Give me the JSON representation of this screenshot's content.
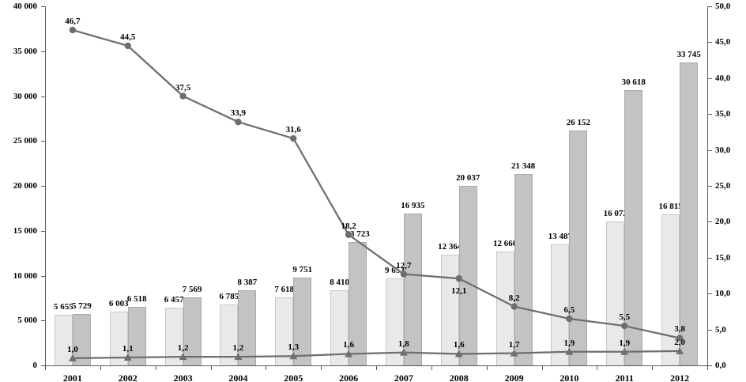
{
  "chart_data": {
    "type": "bar",
    "subtype": "combo-bar-line",
    "title": "",
    "xlabel": "",
    "ylabel": "",
    "grid": false,
    "legend_position": "none",
    "categories": [
      "2001",
      "2002",
      "2003",
      "2004",
      "2005",
      "2006",
      "2007",
      "2008",
      "2009",
      "2010",
      "2011",
      "2012"
    ],
    "series": [
      {
        "id": "bars_light",
        "type": "bar",
        "axis": "left",
        "color": "#e9e9e9",
        "border_color": "#c8c8c8",
        "values": [
          5655,
          6003,
          6457,
          6785,
          7618,
          8410,
          9653,
          12364,
          12660,
          13487,
          16072,
          16815
        ],
        "labels": [
          "5 655",
          "6 003",
          "6 457",
          "6 785",
          "7 618",
          "8 410",
          "9 653",
          "12 364",
          "12 660",
          "13 487",
          "16 072",
          "16 815"
        ]
      },
      {
        "id": "bars_dark",
        "type": "bar",
        "axis": "left",
        "color": "#c3c3c3",
        "border_color": "#a9a9a9",
        "values": [
          5729,
          6518,
          7569,
          8387,
          9751,
          13723,
          16935,
          20037,
          21348,
          26152,
          30618,
          33745
        ],
        "labels": [
          "5 729",
          "6 518",
          "7 569",
          "8 387",
          "9 751",
          "13 723",
          "16 935",
          "20 037",
          "21 348",
          "26 152",
          "30 618",
          "33 745"
        ]
      },
      {
        "id": "line_circles",
        "type": "line",
        "axis": "right",
        "color": "#6e6e6e",
        "marker": "circle",
        "values": [
          46.7,
          44.5,
          37.5,
          33.9,
          31.6,
          18.2,
          12.7,
          12.1,
          8.2,
          6.5,
          5.5,
          3.8
        ],
        "labels": [
          "46,7",
          "44,5",
          "37,5",
          "33,9",
          "31,6",
          "18,2",
          "12,7",
          "12,1",
          "8,2",
          "6,5",
          "5,5",
          "3,8"
        ],
        "label_below_indices": [
          7
        ]
      },
      {
        "id": "line_triangles",
        "type": "line",
        "axis": "right",
        "color": "#6e6e6e",
        "marker": "triangle",
        "values": [
          1.0,
          1.1,
          1.2,
          1.2,
          1.3,
          1.6,
          1.8,
          1.6,
          1.7,
          1.9,
          1.9,
          2.0
        ],
        "labels": [
          "1,0",
          "1,1",
          "1,2",
          "1,2",
          "1,3",
          "1,6",
          "1,8",
          "1,6",
          "1,7",
          "1,9",
          "1,9",
          "2,0"
        ],
        "label_below_indices": []
      }
    ],
    "left_axis": {
      "min": 0,
      "max": 40000,
      "step": 5000,
      "tick_labels": [
        "0",
        "5 000",
        "10 000",
        "15 000",
        "20 000",
        "25 000",
        "30 000",
        "35 000",
        "40 000"
      ]
    },
    "right_axis": {
      "min": 0,
      "max": 50,
      "step": 5,
      "tick_labels": [
        "0,0",
        "5,0",
        "10,0",
        "15,0",
        "20,0",
        "25,0",
        "30,0",
        "35,0",
        "40,0",
        "45,0",
        "50,0"
      ]
    }
  }
}
